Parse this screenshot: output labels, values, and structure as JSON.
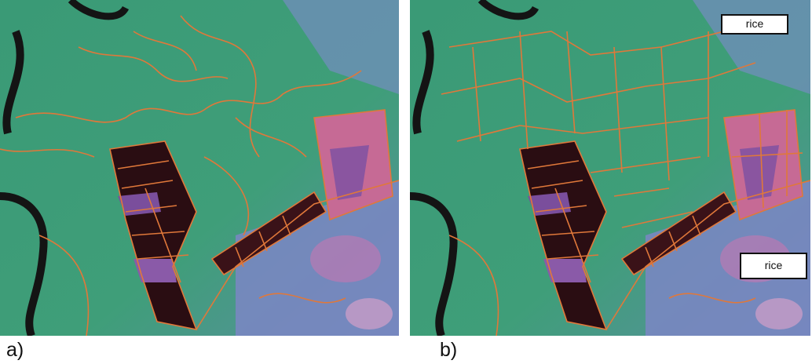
{
  "panels": {
    "a": {
      "label": "a)"
    },
    "b": {
      "label": "b)"
    }
  },
  "annotations": {
    "rice_top": "rice",
    "rice_bottom": "rice"
  },
  "colors": {
    "vegetation": "#3f9d78",
    "dark_field": "#2a0d12",
    "pink_field": "#c66a95",
    "river": "#1a1a1a",
    "boundary": "#e0783a"
  }
}
